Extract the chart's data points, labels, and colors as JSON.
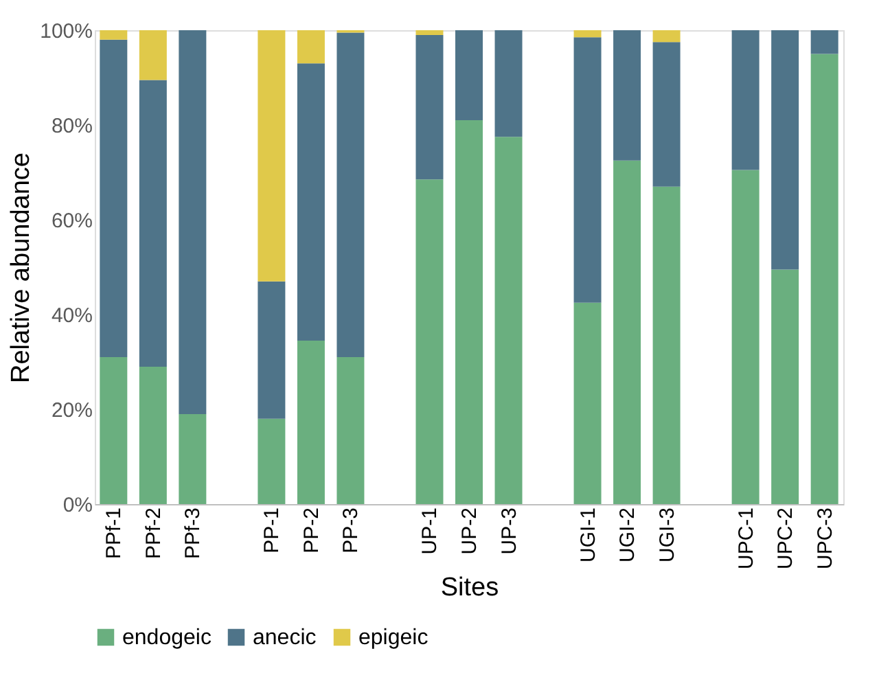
{
  "chart_data": {
    "type": "bar",
    "stacked": true,
    "xlabel": "Sites",
    "ylabel": "Relative abundance",
    "categories": [
      "PPf-1",
      "PPf-2",
      "PPf-3",
      null,
      "PP-1",
      "PP-2",
      "PP-3",
      null,
      "UP-1",
      "UP-2",
      "UP-3",
      null,
      "UGI-1",
      "UGI-2",
      "UGI-3",
      null,
      "UPC-1",
      "UPC-2",
      "UPC-3"
    ],
    "series": [
      {
        "name": "endogeic",
        "color": "#6aaf7f",
        "values": [
          31,
          29,
          19,
          null,
          18,
          34.5,
          31,
          null,
          68.5,
          81,
          77.5,
          null,
          42.5,
          72.5,
          67,
          null,
          70.5,
          49.5,
          95
        ]
      },
      {
        "name": "anecic",
        "color": "#4f7489",
        "values": [
          67,
          60.5,
          81,
          null,
          29,
          58.5,
          68.5,
          null,
          30.5,
          19,
          22.5,
          null,
          56,
          27.5,
          30.5,
          null,
          29.5,
          50.5,
          5
        ]
      },
      {
        "name": "epigeic",
        "color": "#e0c94a",
        "values": [
          2,
          10.5,
          0,
          null,
          53,
          7,
          0.5,
          null,
          1,
          0,
          0,
          null,
          1.5,
          0,
          2.5,
          null,
          0,
          0,
          0
        ]
      }
    ],
    "ylim": [
      0,
      100
    ],
    "yticks": [
      {
        "value": 0,
        "label": "0%"
      },
      {
        "value": 20,
        "label": "20%"
      },
      {
        "value": 40,
        "label": "40%"
      },
      {
        "value": 60,
        "label": "60%"
      },
      {
        "value": 80,
        "label": "80%"
      },
      {
        "value": 100,
        "label": "100%"
      }
    ],
    "grid": false,
    "legend": "bottom"
  }
}
